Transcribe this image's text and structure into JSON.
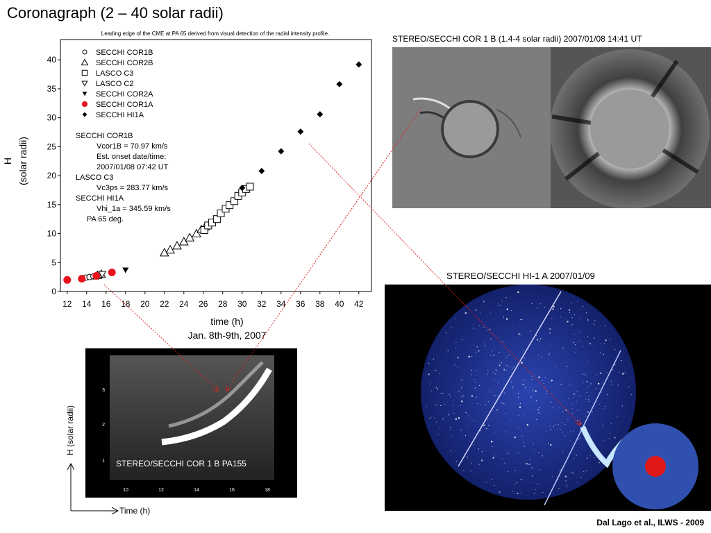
{
  "slide_title": "Coronagraph (2 – 40 solar radii)",
  "chart_data": {
    "type": "scatter",
    "title": "Leading edge of the CME at PA 65 derived from visual detection of the radial intensity profile.",
    "xlabel": "time (h)",
    "xlabel2": "Jan. 8th-9th, 2007",
    "ylabel": "H",
    "ylabel2": "(solar radii)",
    "xlim": [
      11.3,
      43.3
    ],
    "ylim": [
      0,
      43.5
    ],
    "xticks": [
      12,
      14,
      16,
      18,
      20,
      22,
      24,
      26,
      28,
      30,
      32,
      34,
      36,
      38,
      40,
      42
    ],
    "yticks": [
      0,
      5,
      10,
      15,
      20,
      25,
      30,
      35,
      40
    ],
    "legend_position": "top-left",
    "series": [
      {
        "name": "SECCHI COR1B",
        "marker": "circle-open",
        "x": [
          13.9,
          14.3,
          14.7
        ],
        "y": [
          2.4,
          2.5,
          2.6
        ]
      },
      {
        "name": "SECCHI COR2B",
        "marker": "triangle-up-open",
        "x": [
          15.1,
          15.5,
          22.0,
          22.6,
          23.3,
          24.0,
          24.6,
          25.3,
          25.8,
          26.2
        ],
        "y": [
          2.8,
          3.0,
          6.7,
          7.2,
          7.9,
          8.6,
          9.3,
          10.0,
          10.7,
          11.2
        ]
      },
      {
        "name": "LASCO C3",
        "marker": "square-open",
        "x": [
          26.1,
          26.5,
          26.9,
          27.4,
          27.8,
          28.3,
          28.7,
          29.2,
          29.6,
          30.0,
          30.4,
          30.8
        ],
        "y": [
          10.6,
          11.4,
          11.9,
          12.5,
          13.5,
          14.3,
          14.9,
          15.6,
          16.5,
          17.1,
          17.7,
          18.1
        ]
      },
      {
        "name": "LASCO C2",
        "marker": "triangle-down-open",
        "x": [
          15.2,
          15.6
        ],
        "y": [
          2.7,
          3.0
        ]
      },
      {
        "name": "SECCHI COR2A",
        "marker": "triangle-down-filled",
        "x": [
          18.0
        ],
        "y": [
          3.7
        ]
      },
      {
        "name": "SECCHI COR1A",
        "marker": "circle-filled-red",
        "x": [
          12.0,
          13.5,
          15.0,
          16.6
        ],
        "y": [
          2.0,
          2.2,
          2.7,
          3.3
        ]
      },
      {
        "name": "SECCHI HI1A",
        "marker": "diamond-filled",
        "x": [
          30.0,
          32.0,
          34.0,
          36.0,
          38.0,
          40.0,
          42.0
        ],
        "y": [
          17.9,
          20.8,
          24.2,
          27.6,
          30.6,
          35.8,
          39.2
        ]
      }
    ],
    "annotation_lines": [
      "SECCHI COR1B",
      "Vcor1B = 70.97 km/s",
      "Est. onset date/time:",
      "2007/01/08 07:42 UT",
      "LASCO C3",
      "Vc3ps = 283.77 km/s",
      "SECCHI HI1A",
      "Vhi_1a = 345.59 km/s",
      "PA 65 deg."
    ]
  },
  "images": {
    "cor1b_title": "STEREO/SECCHI COR 1 B (1.4-4 solar radii)  2007/01/08 14:41 UT",
    "hi1_title": "STEREO/SECCHI HI-1 A       2007/01/09",
    "jmap_label": "STEREO/SECCHI COR 1 B PA155",
    "jmap_yticks": [
      "3",
      "2",
      "1"
    ],
    "jmap_xticks": [
      "10",
      "12",
      "14",
      "16",
      "18"
    ],
    "jmap_axis_y": "H (solar radii)",
    "jmap_axis_x": "Time (h)"
  },
  "credit": "Dal Lago et al., ILWS - 2009",
  "colors": {
    "cor1a_red": "#e8141c",
    "arrow_red": "#e02020",
    "hi1_blue": "#1a2e86",
    "sun_red": "#e01818"
  }
}
